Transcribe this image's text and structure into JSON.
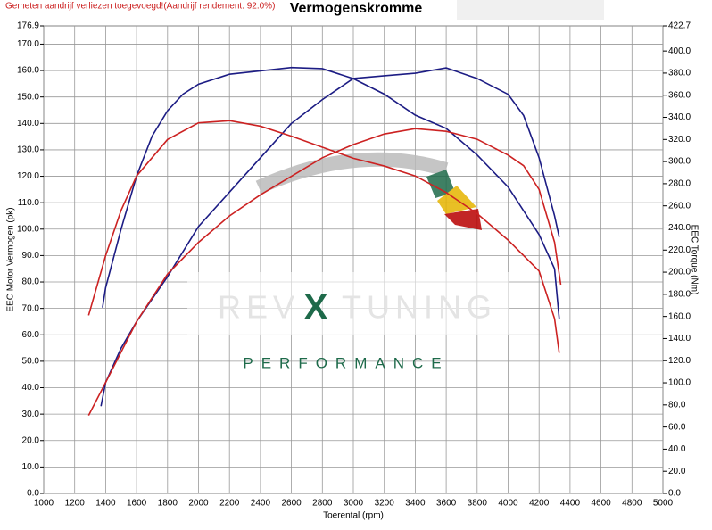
{
  "notice": "Gemeten aandrijf verliezen toegevoegd!(Aandrijf rendement: 92.0%)",
  "logo": {
    "left": "REV",
    "mark": "X",
    "right": "TUNING",
    "tagline": "PERFORMANCE"
  },
  "chart_data": {
    "type": "line",
    "title": "Vermogenskromme",
    "x_label": "Toerental (rpm)",
    "y_label": "EEC Motor Vermogen (pk)",
    "y2_label": "EEC Torque (Nm)",
    "xlim": [
      1000,
      5000
    ],
    "xticks": [
      1000,
      1200,
      1400,
      1600,
      1800,
      2000,
      2200,
      2400,
      2600,
      2800,
      3000,
      3200,
      3400,
      3600,
      3800,
      4000,
      4200,
      4400,
      4600,
      4800,
      5000
    ],
    "ylim": [
      0,
      176.9
    ],
    "yticks": [
      {
        "value": 0,
        "label": "0.0"
      },
      {
        "value": 10,
        "label": "10.0"
      },
      {
        "value": 20,
        "label": "20.0"
      },
      {
        "value": 30,
        "label": "30.0"
      },
      {
        "value": 40,
        "label": "40.0"
      },
      {
        "value": 50,
        "label": "50.0"
      },
      {
        "value": 60,
        "label": "60.0"
      },
      {
        "value": 70,
        "label": "70.0"
      },
      {
        "value": 80,
        "label": "80.0"
      },
      {
        "value": 90,
        "label": "90.0"
      },
      {
        "value": 100,
        "label": "100.0"
      },
      {
        "value": 110,
        "label": "110.0"
      },
      {
        "value": 120,
        "label": "120.0"
      },
      {
        "value": 130,
        "label": "130.0"
      },
      {
        "value": 140,
        "label": "140.0"
      },
      {
        "value": 150,
        "label": "150.0"
      },
      {
        "value": 160,
        "label": "160.0"
      },
      {
        "value": 170,
        "label": "170.0"
      },
      176.9
    ],
    "y2lim": [
      0,
      422.7
    ],
    "y2ticks": [
      {
        "value": 0,
        "label": "0.0"
      },
      {
        "value": 20,
        "label": "20.0"
      },
      {
        "value": 40,
        "label": "40.0"
      },
      {
        "value": 60,
        "label": "60.0"
      },
      {
        "value": 80,
        "label": "80.0"
      },
      {
        "value": 100,
        "label": "100.0"
      },
      {
        "value": 120,
        "label": "120.0"
      },
      {
        "value": 140,
        "label": "140.0"
      },
      {
        "value": 160,
        "label": "160.0"
      },
      {
        "value": 180,
        "label": "180.0"
      },
      {
        "value": 200,
        "label": "200.0"
      },
      {
        "value": 220,
        "label": "220.0"
      },
      {
        "value": 240,
        "label": "240.0"
      },
      {
        "value": 260,
        "label": "260.0"
      },
      {
        "value": 280,
        "label": "280.0"
      },
      {
        "value": 300,
        "label": "300.0"
      },
      {
        "value": 320,
        "label": "320.0"
      },
      {
        "value": 340,
        "label": "340.0"
      },
      {
        "value": 360,
        "label": "360.0"
      },
      {
        "value": 380,
        "label": "380.0"
      },
      {
        "value": 400,
        "label": "400.0"
      },
      422.7
    ],
    "grid": true,
    "series": [
      {
        "color": "#1c1c84",
        "axis": "y",
        "x": [
          1370,
          1400,
          1500,
          1600,
          1800,
          2000,
          2200,
          2400,
          2600,
          2800,
          3000,
          3200,
          3400,
          3600,
          3800,
          4000,
          4100,
          4200,
          4300,
          4330
        ],
        "values": [
          33,
          42,
          55,
          65,
          82,
          101,
          114,
          127,
          140,
          149,
          157,
          158,
          159,
          161,
          157,
          151,
          143,
          127,
          105,
          97
        ]
      },
      {
        "color": "#1c1c84",
        "axis": "y2",
        "x": [
          1380,
          1400,
          1500,
          1600,
          1700,
          1800,
          1900,
          2000,
          2200,
          2400,
          2600,
          2800,
          3000,
          3200,
          3400,
          3600,
          3800,
          4000,
          4200,
          4300,
          4330
        ],
        "values": [
          168,
          186,
          239,
          287,
          323,
          346,
          361,
          370,
          379,
          382,
          385,
          384,
          375,
          361,
          342,
          330,
          306,
          277,
          234,
          203,
          158
        ]
      },
      {
        "color": "#cc2222",
        "axis": "y",
        "x": [
          1290,
          1400,
          1600,
          1800,
          2000,
          2200,
          2400,
          2600,
          2800,
          3000,
          3200,
          3400,
          3600,
          3800,
          4000,
          4100,
          4200,
          4300,
          4340
        ],
        "values": [
          29.5,
          42,
          65,
          83,
          95,
          105,
          113,
          120,
          127,
          132,
          136,
          138,
          137,
          134,
          128,
          124,
          115,
          95,
          79
        ]
      },
      {
        "color": "#cc2222",
        "axis": "y2",
        "x": [
          1290,
          1400,
          1500,
          1600,
          1800,
          2000,
          2200,
          2400,
          2600,
          2800,
          3000,
          3200,
          3400,
          3600,
          3800,
          4000,
          4200,
          4300,
          4330
        ],
        "values": [
          161,
          215,
          256,
          287,
          320,
          335,
          337,
          332,
          323,
          313,
          303,
          296,
          287,
          272,
          253,
          229,
          201,
          158,
          127
        ]
      }
    ]
  }
}
